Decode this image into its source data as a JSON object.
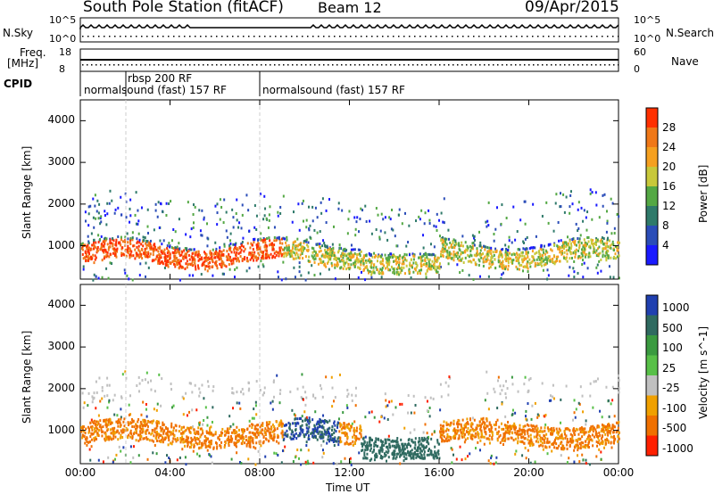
{
  "header": {
    "station": "South Pole Station (fitACF)",
    "beam": "Beam 12",
    "date": "09/Apr/2015"
  },
  "side_labels": {
    "nsky": "N.Sky",
    "freq_line1": "Freq.",
    "freq_line2": "[MHz]",
    "cpid": "CPID",
    "nsearch": "N.Search",
    "nave": "Nave"
  },
  "axis_ticks": {
    "nsky_top": "10^5",
    "nsky_bottom": "10^0",
    "nsearch_top": "10^5",
    "nsearch_bottom": "10^0",
    "freq_top": "18",
    "freq_bottom": "8",
    "nave_top": "60",
    "nave_bottom": "0"
  },
  "cpid_segments": [
    {
      "label": "normalsound (fast) 157 RF",
      "start_hour": 0
    },
    {
      "label": "rbsp 200 RF",
      "start_hour": 1.6
    },
    {
      "label": "normalsound (fast) 157 RF",
      "start_hour": 8.0
    }
  ],
  "chart_data": [
    {
      "type": "heatmap",
      "ylabel": "Slant Range [km]",
      "xlabel": "Time UT",
      "xlim_hours": [
        0,
        24
      ],
      "ylim": [
        200,
        4500
      ],
      "x_tick_labels": [
        "00:00",
        "04:00",
        "08:00",
        "12:00",
        "16:00",
        "20:00",
        "00:00"
      ],
      "y_tick_labels": [
        "1000",
        "2000",
        "3000",
        "4000"
      ],
      "colorbar_label": "Power [dB]",
      "colorbar_ticks": [
        "4",
        "8",
        "12",
        "16",
        "20",
        "24",
        "28"
      ],
      "colorbar_colors": [
        "#1a1aff",
        "#2b4db8",
        "#2f7a6a",
        "#54a844",
        "#c8c83a",
        "#f5a020",
        "#f07818",
        "#ff3000"
      ]
    },
    {
      "type": "heatmap",
      "ylabel": "Slant Range [km]",
      "xlabel": "Time UT",
      "xlim_hours": [
        0,
        24
      ],
      "ylim": [
        200,
        4500
      ],
      "x_tick_labels": [
        "00:00",
        "04:00",
        "08:00",
        "12:00",
        "16:00",
        "20:00",
        "00:00"
      ],
      "y_tick_labels": [
        "1000",
        "2000",
        "3000",
        "4000"
      ],
      "colorbar_label": "Velocity [m s^-1]",
      "colorbar_ticks": [
        "1000",
        "500",
        "100",
        "25",
        "-25",
        "-100",
        "-500",
        "-1000"
      ],
      "colorbar_colors": [
        "#2040b0",
        "#2f6a60",
        "#3a9a40",
        "#58c048",
        "#c0c0c0",
        "#f0a000",
        "#f07000",
        "#ff2000"
      ]
    }
  ]
}
